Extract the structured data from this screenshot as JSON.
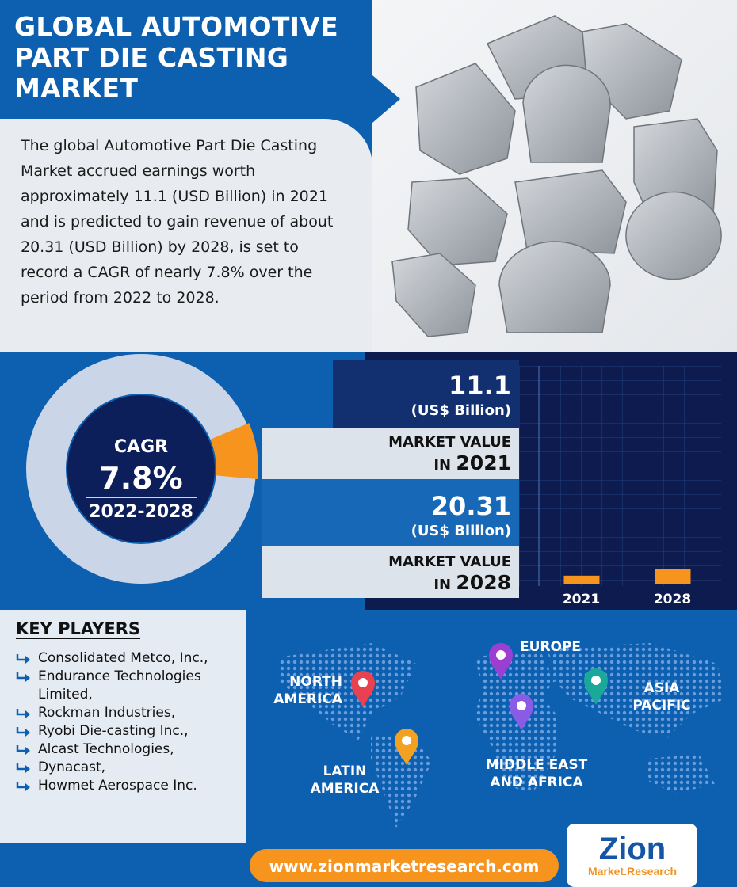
{
  "header": {
    "title": "GLOBAL AUTOMOTIVE PART DIE CASTING MARKET"
  },
  "summary": "The global Automotive Part Die Casting Market accrued earnings worth approximately 11.1 (USD Billion) in 2021 and is predicted to gain revenue of about 20.31 (USD Billion) by 2028, is set to record a CAGR of nearly 7.8% over the period from 2022 to 2028.",
  "cagr": {
    "label": "CAGR",
    "value": 7.8,
    "value_label": "7.8%",
    "period": "2022-2028",
    "color": "#f7941d"
  },
  "chart_data": {
    "type": "bar",
    "categories": [
      "2021",
      "2028"
    ],
    "values": [
      11.1,
      20.31
    ],
    "unit": "(US$ Billion)",
    "caption": "MARKET VALUE",
    "caption_prefix": "IN",
    "color": "#f7941d",
    "ylim": [
      0,
      300
    ]
  },
  "key_players": {
    "title": "KEY PLAYERS",
    "items": [
      "Consolidated Metco, Inc.,",
      "Endurance Technologies Limited,",
      "Rockman Industries,",
      "Ryobi Die-casting Inc.,",
      "Alcast Technologies,",
      "Dynacast,",
      "Howmet Aerospace Inc."
    ]
  },
  "regions": [
    "NORTH AMERICA",
    "EUROPE",
    "ASIA PACIFIC",
    "MIDDLE EAST AND AFRICA",
    "LATIN AMERICA"
  ],
  "footer": {
    "url": "www.zionmarketresearch.com",
    "logo": "Zion",
    "logo_sub": "Market.Research"
  }
}
